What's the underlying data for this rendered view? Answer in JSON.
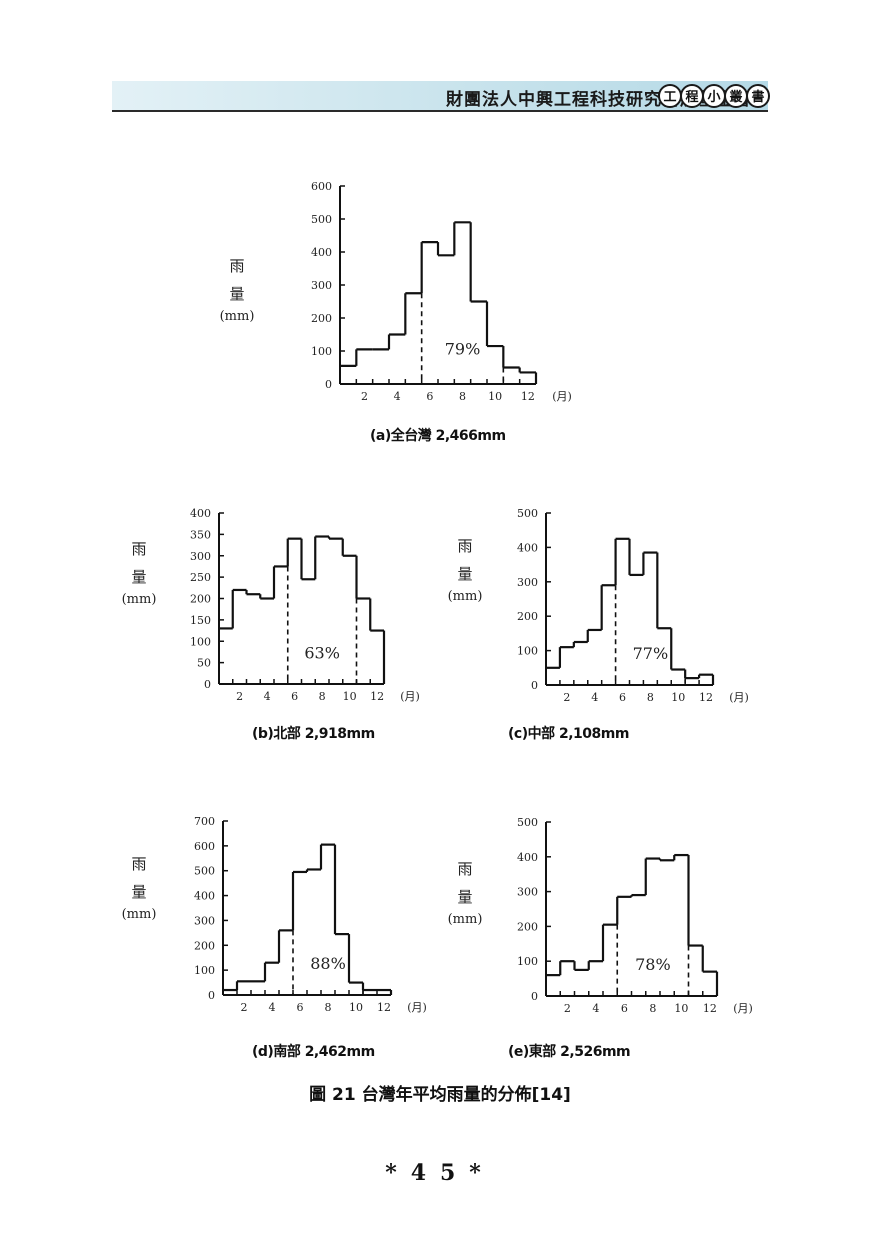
{
  "header": {
    "org": "財團法人中興工程科技研究發展基金會",
    "series_chars": [
      "工",
      "程",
      "小",
      "叢",
      "書"
    ]
  },
  "y_label": {
    "line1": "雨",
    "line2": "量",
    "unit": "(mm)"
  },
  "x_unit": "(月)",
  "figure_title": "圖 21  台灣年平均雨量的分佈[14]",
  "page_number": "*45*",
  "chart_data": [
    {
      "type": "bar",
      "caption": "(a)全台灣 2,466mm",
      "categories": [
        "1",
        "2",
        "3",
        "4",
        "5",
        "6",
        "7",
        "8",
        "9",
        "10",
        "11",
        "12"
      ],
      "values": [
        55,
        105,
        105,
        150,
        275,
        430,
        390,
        490,
        250,
        115,
        50,
        35
      ],
      "ylim": [
        0,
        600
      ],
      "yticks": [
        0,
        100,
        200,
        300,
        400,
        500,
        600
      ],
      "xticks": [
        2,
        4,
        6,
        8,
        10,
        12
      ],
      "wet_season": [
        5,
        10
      ],
      "annotation": "79%"
    },
    {
      "type": "bar",
      "caption": "(b)北部 2,918mm",
      "categories": [
        "1",
        "2",
        "3",
        "4",
        "5",
        "6",
        "7",
        "8",
        "9",
        "10",
        "11",
        "12"
      ],
      "values": [
        130,
        220,
        210,
        200,
        275,
        340,
        245,
        345,
        340,
        300,
        200,
        125
      ],
      "ylim": [
        0,
        400
      ],
      "yticks": [
        0,
        50,
        100,
        150,
        200,
        250,
        300,
        350,
        400
      ],
      "xticks": [
        2,
        4,
        6,
        8,
        10,
        12
      ],
      "wet_season": [
        5,
        10
      ],
      "annotation": "63%"
    },
    {
      "type": "bar",
      "caption": "(c)中部 2,108mm",
      "categories": [
        "1",
        "2",
        "3",
        "4",
        "5",
        "6",
        "7",
        "8",
        "9",
        "10",
        "11",
        "12"
      ],
      "values": [
        50,
        110,
        125,
        160,
        290,
        425,
        320,
        385,
        165,
        45,
        20,
        30
      ],
      "ylim": [
        0,
        500
      ],
      "yticks": [
        0,
        100,
        200,
        300,
        400,
        500
      ],
      "xticks": [
        2,
        4,
        6,
        8,
        10,
        12
      ],
      "wet_season": [
        5,
        10
      ],
      "annotation": "77%"
    },
    {
      "type": "bar",
      "caption": "(d)南部 2,462mm",
      "categories": [
        "1",
        "2",
        "3",
        "4",
        "5",
        "6",
        "7",
        "8",
        "9",
        "10",
        "11",
        "12"
      ],
      "values": [
        20,
        55,
        55,
        130,
        260,
        495,
        505,
        605,
        245,
        50,
        20,
        20
      ],
      "ylim": [
        0,
        700
      ],
      "yticks": [
        0,
        100,
        200,
        300,
        400,
        500,
        600,
        700
      ],
      "xticks": [
        2,
        4,
        6,
        8,
        10,
        12
      ],
      "wet_season": [
        5,
        10
      ],
      "annotation": "88%"
    },
    {
      "type": "bar",
      "caption": "(e)東部 2,526mm",
      "categories": [
        "1",
        "2",
        "3",
        "4",
        "5",
        "6",
        "7",
        "8",
        "9",
        "10",
        "11",
        "12"
      ],
      "values": [
        60,
        100,
        75,
        100,
        205,
        285,
        290,
        395,
        390,
        405,
        145,
        70
      ],
      "ylim": [
        0,
        500
      ],
      "yticks": [
        0,
        100,
        200,
        300,
        400,
        500
      ],
      "xticks": [
        2,
        4,
        6,
        8,
        10,
        12
      ],
      "wet_season": [
        5,
        10
      ],
      "annotation": "78%"
    }
  ]
}
